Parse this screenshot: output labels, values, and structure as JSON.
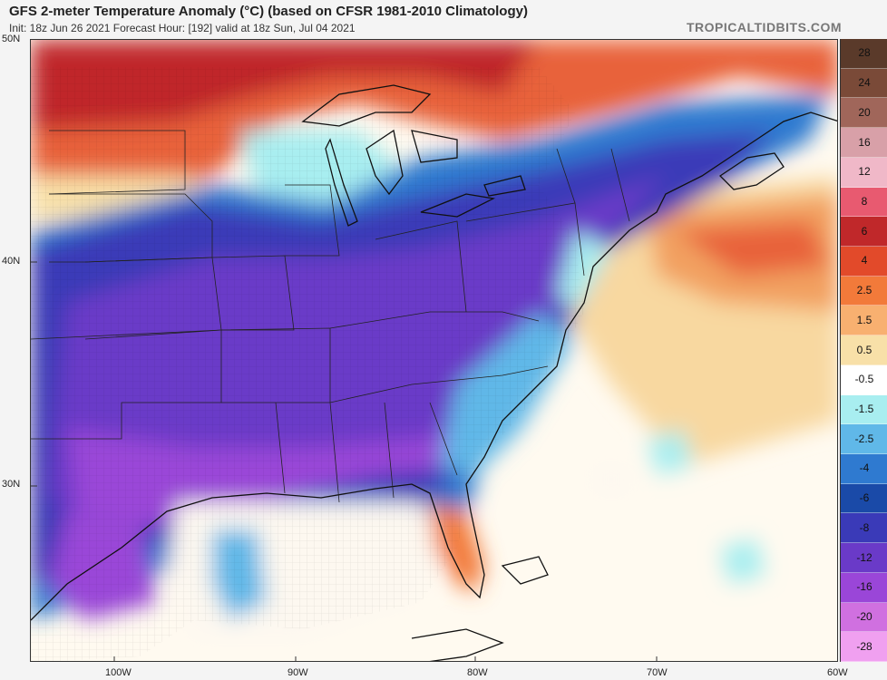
{
  "header": {
    "title": "GFS 2-meter Temperature Anomaly (°C) (based on CFSR 1981-2010 Climatology)",
    "subtitle": "Init: 18z Jun 26 2021   Forecast Hour: [192]   valid at 18z Sun, Jul 04 2021",
    "brand": "TROPICALTIDBITS.COM"
  },
  "axes": {
    "latitudes": [
      "50N",
      "40N",
      "30N"
    ],
    "longitudes": [
      "100W",
      "90W",
      "80W",
      "70W",
      "60W"
    ]
  },
  "colorbar": {
    "labels": [
      "28",
      "24",
      "20",
      "16",
      "12",
      "8",
      "6",
      "4",
      "2.5",
      "1.5",
      "0.5",
      "-0.5",
      "-1.5",
      "-2.5",
      "-4",
      "-6",
      "-8",
      "-12",
      "-16",
      "-20",
      "-28"
    ],
    "colors": [
      "#5a3a2a",
      "#7a4a38",
      "#a0665a",
      "#d8a0a8",
      "#f0b8c8",
      "#e85a70",
      "#c0282a",
      "#e24a2a",
      "#f27a3a",
      "#f8b070",
      "#f8e0a8",
      "#ffffff",
      "#a8eef0",
      "#60b8e8",
      "#2f7ad0",
      "#1a4aa8",
      "#3a3ab8",
      "#6a3ac8",
      "#9a46d8",
      "#d070e0",
      "#f0a0f0"
    ]
  },
  "map": {
    "variable": "2-meter temperature anomaly",
    "units": "°C",
    "region": "Eastern United States and western Atlantic"
  }
}
